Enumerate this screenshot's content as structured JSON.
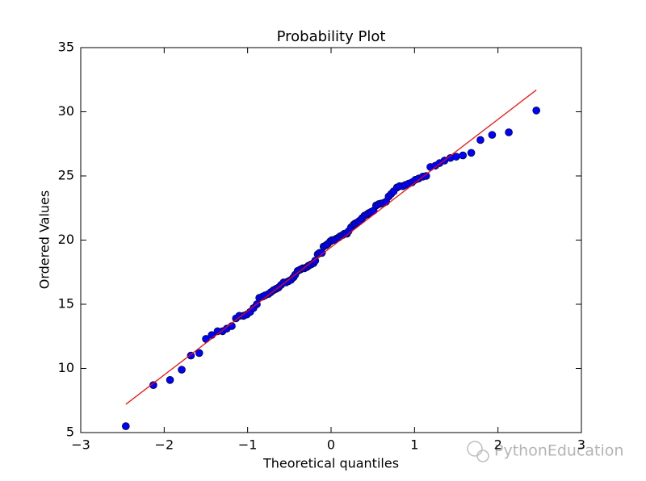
{
  "chart_data": {
    "type": "scatter",
    "title": "Probability Plot",
    "xlabel": "Theoretical quantiles",
    "ylabel": "Ordered Values",
    "x": [
      -2.46,
      -2.13,
      -1.93,
      -1.79,
      -1.68,
      -1.58,
      -1.5,
      -1.43,
      -1.36,
      -1.3,
      -1.25,
      -1.19,
      -1.14,
      -1.1,
      -1.05,
      -1.01,
      -0.97,
      -0.93,
      -0.89,
      -0.86,
      -0.82,
      -0.79,
      -0.75,
      -0.72,
      -0.69,
      -0.66,
      -0.63,
      -0.6,
      -0.57,
      -0.54,
      -0.51,
      -0.48,
      -0.45,
      -0.43,
      -0.4,
      -0.37,
      -0.34,
      -0.32,
      -0.29,
      -0.27,
      -0.24,
      -0.21,
      -0.19,
      -0.16,
      -0.14,
      -0.11,
      -0.09,
      -0.06,
      -0.04,
      -0.01,
      0.01,
      0.04,
      0.06,
      0.09,
      0.11,
      0.14,
      0.16,
      0.19,
      0.21,
      0.24,
      0.27,
      0.29,
      0.32,
      0.34,
      0.37,
      0.4,
      0.43,
      0.45,
      0.48,
      0.51,
      0.54,
      0.57,
      0.6,
      0.63,
      0.66,
      0.69,
      0.72,
      0.75,
      0.79,
      0.82,
      0.86,
      0.89,
      0.93,
      0.97,
      1.01,
      1.05,
      1.1,
      1.14,
      1.19,
      1.25,
      1.3,
      1.36,
      1.43,
      1.5,
      1.58,
      1.68,
      1.79,
      1.93,
      2.13,
      2.46
    ],
    "values": [
      5.5,
      8.7,
      9.1,
      9.9,
      11.0,
      11.2,
      12.3,
      12.6,
      12.9,
      12.9,
      13.1,
      13.3,
      13.9,
      14.1,
      14.1,
      14.2,
      14.4,
      14.7,
      15.0,
      15.5,
      15.6,
      15.7,
      15.8,
      15.95,
      16.1,
      16.2,
      16.3,
      16.5,
      16.7,
      16.7,
      16.8,
      16.9,
      17.1,
      17.3,
      17.6,
      17.7,
      17.8,
      17.8,
      17.9,
      18.0,
      18.1,
      18.2,
      18.4,
      18.9,
      19.0,
      19.0,
      19.5,
      19.6,
      19.7,
      19.9,
      20.0,
      20.0,
      20.1,
      20.2,
      20.3,
      20.4,
      20.5,
      20.5,
      20.7,
      21.0,
      21.2,
      21.3,
      21.4,
      21.5,
      21.7,
      21.9,
      22.0,
      22.1,
      22.2,
      22.3,
      22.7,
      22.8,
      22.85,
      22.9,
      23.0,
      23.4,
      23.6,
      23.8,
      24.1,
      24.2,
      24.2,
      24.3,
      24.4,
      24.5,
      24.7,
      24.8,
      24.95,
      25.0,
      25.7,
      25.8,
      26.0,
      26.2,
      26.4,
      26.5,
      26.6,
      26.8,
      27.8,
      28.2,
      28.4,
      30.1
    ],
    "color": "#0000ff",
    "fit_line": {
      "x": [
        -2.46,
        2.46
      ],
      "values": [
        7.2,
        31.7
      ],
      "color": "#ff0000"
    },
    "xlim": [
      -3,
      3
    ],
    "xticks": [
      {
        "value": -3,
        "label": "−3"
      },
      {
        "value": -2,
        "label": "−2"
      },
      {
        "value": -1,
        "label": "−1"
      },
      0,
      1,
      2,
      3
    ],
    "ylim": [
      5,
      35
    ],
    "yticks": [
      5,
      10,
      15,
      20,
      25,
      30,
      35
    ],
    "grid": false
  },
  "watermark": "PythonEducation"
}
